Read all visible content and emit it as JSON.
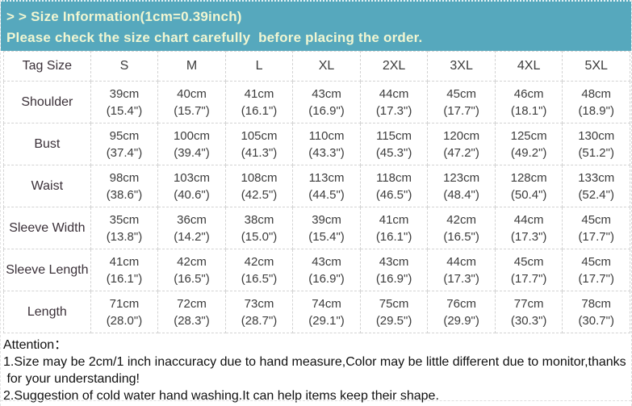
{
  "banner": {
    "title": "> > Size Information(1cm=0.39inch)",
    "subtitle": "Please check the size chart carefully  before placing the order."
  },
  "table": {
    "header": [
      "Tag Size",
      "S",
      "M",
      "L",
      "XL",
      "2XL",
      "3XL",
      "4XL",
      "5XL"
    ],
    "rows": [
      {
        "label": "Shoulder",
        "cells": [
          [
            "39cm",
            "(15.4\")"
          ],
          [
            "40cm",
            "(15.7\")"
          ],
          [
            "41cm",
            "(16.1\")"
          ],
          [
            "43cm",
            "(16.9\")"
          ],
          [
            "44cm",
            "(17.3\")"
          ],
          [
            "45cm",
            "(17.7\")"
          ],
          [
            "46cm",
            "(18.1\")"
          ],
          [
            "48cm",
            "(18.9\")"
          ]
        ]
      },
      {
        "label": "Bust",
        "cells": [
          [
            "95cm",
            "(37.4\")"
          ],
          [
            "100cm",
            "(39.4\")"
          ],
          [
            "105cm",
            "(41.3\")"
          ],
          [
            "110cm",
            "(43.3\")"
          ],
          [
            "115cm",
            "(45.3\")"
          ],
          [
            "120cm",
            "(47.2\")"
          ],
          [
            "125cm",
            "(49.2\")"
          ],
          [
            "130cm",
            "(51.2\")"
          ]
        ]
      },
      {
        "label": "Waist",
        "cells": [
          [
            "98cm",
            "(38.6\")"
          ],
          [
            "103cm",
            "(40.6\")"
          ],
          [
            "108cm",
            "(42.5\")"
          ],
          [
            "113cm",
            "(44.5\")"
          ],
          [
            "118cm",
            "(46.5\")"
          ],
          [
            "123cm",
            "(48.4\")"
          ],
          [
            "128cm",
            "(50.4\")"
          ],
          [
            "133cm",
            "(52.4\")"
          ]
        ]
      },
      {
        "label": "Sleeve Width",
        "cells": [
          [
            "35cm",
            "(13.8\")"
          ],
          [
            "36cm",
            "(14.2\")"
          ],
          [
            "38cm",
            "(15.0\")"
          ],
          [
            "39cm",
            "(15.4\")"
          ],
          [
            "41cm",
            "(16.1\")"
          ],
          [
            "42cm",
            "(16.5\")"
          ],
          [
            "44cm",
            "(17.3\")"
          ],
          [
            "45cm",
            "(17.7\")"
          ]
        ]
      },
      {
        "label": "Sleeve Length",
        "cells": [
          [
            "41cm",
            "(16.1\")"
          ],
          [
            "42cm",
            "(16.5\")"
          ],
          [
            "42cm",
            "(16.5\")"
          ],
          [
            "43cm",
            "(16.9\")"
          ],
          [
            "43cm",
            "(16.9\")"
          ],
          [
            "44cm",
            "(17.3\")"
          ],
          [
            "45cm",
            "(17.7\")"
          ],
          [
            "45cm",
            "(17.7\")"
          ]
        ]
      },
      {
        "label": "Length",
        "cells": [
          [
            "71cm",
            "(28.0\")"
          ],
          [
            "72cm",
            "(28.3\")"
          ],
          [
            "73cm",
            "(28.7\")"
          ],
          [
            "74cm",
            "(29.1\")"
          ],
          [
            "75cm",
            "(29.5\")"
          ],
          [
            "76cm",
            "(29.9\")"
          ],
          [
            "77cm",
            "(30.3\")"
          ],
          [
            "78cm",
            "(30.7\")"
          ]
        ]
      }
    ]
  },
  "notes": {
    "heading": "Attention：",
    "lines": [
      "1.Size may be 2cm/1 inch inaccuracy due to hand measure,Color may be little different due to monitor,thanks",
      " for your understanding!",
      "2.Suggestion of cold water hand washing.It can help items keep their shape."
    ]
  },
  "colors": {
    "banner_bg": "#56a8bd",
    "banner_text": "#f0f6d2",
    "label_bg": "#f083c4"
  }
}
